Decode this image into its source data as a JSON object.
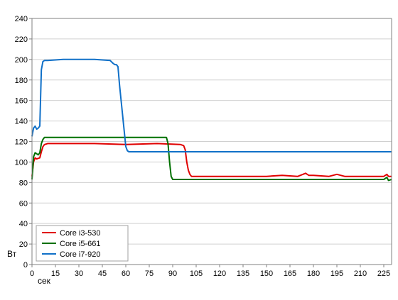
{
  "chart_data": {
    "type": "line",
    "title": "",
    "xlabel": "сек",
    "ylabel": "Вт",
    "xlim": [
      0,
      230
    ],
    "ylim": [
      0,
      240
    ],
    "xticks": [
      0,
      15,
      30,
      45,
      60,
      75,
      90,
      105,
      120,
      135,
      150,
      165,
      180,
      195,
      210,
      225
    ],
    "yticks": [
      0,
      20,
      40,
      60,
      80,
      100,
      120,
      140,
      160,
      180,
      200,
      220,
      240
    ],
    "grid": "horizontal",
    "legend": "bottom-left",
    "series": [
      {
        "name": "Core i3-530",
        "color": "#e00000",
        "x": [
          0,
          1,
          2,
          3,
          5,
          6,
          7,
          8,
          10,
          20,
          40,
          60,
          80,
          95,
          97,
          98,
          99,
          100,
          101,
          102,
          103,
          110,
          130,
          150,
          160,
          170,
          175,
          177,
          180,
          190,
          195,
          200,
          210,
          220,
          225,
          227,
          228,
          230
        ],
        "y": [
          86,
          100,
          104,
          103,
          104,
          110,
          115,
          117,
          118,
          118,
          118,
          117,
          118,
          117,
          116,
          112,
          100,
          92,
          88,
          86,
          86,
          86,
          86,
          86,
          87,
          86,
          89,
          87,
          87,
          86,
          88,
          86,
          86,
          86,
          86,
          88,
          86,
          86
        ]
      },
      {
        "name": "Core i5-661",
        "color": "#007000",
        "x": [
          0,
          1,
          2,
          3,
          4,
          5,
          6,
          7,
          8,
          10,
          20,
          40,
          60,
          80,
          86,
          87,
          88,
          89,
          90,
          100,
          120,
          150,
          165,
          180,
          200,
          220,
          225,
          227,
          228,
          230
        ],
        "y": [
          83,
          105,
          109,
          108,
          107,
          109,
          118,
          122,
          124,
          124,
          124,
          124,
          124,
          124,
          124,
          118,
          100,
          86,
          83,
          83,
          83,
          83,
          83,
          83,
          83,
          83,
          83,
          85,
          82,
          83
        ]
      },
      {
        "name": "Core i7-920",
        "color": "#1070c8",
        "x": [
          0,
          1,
          2,
          3,
          4,
          5,
          6,
          7,
          8,
          10,
          20,
          40,
          50,
          52,
          53,
          54,
          55,
          56,
          57,
          58,
          59,
          60,
          61,
          62,
          70,
          90,
          100,
          120,
          150,
          180,
          200,
          230
        ],
        "y": [
          125,
          133,
          135,
          132,
          133,
          135,
          190,
          198,
          199,
          199,
          200,
          200,
          199,
          196,
          195,
          195,
          193,
          175,
          160,
          145,
          130,
          115,
          111,
          110,
          110,
          110,
          110,
          110,
          110,
          110,
          110,
          110
        ]
      }
    ]
  }
}
